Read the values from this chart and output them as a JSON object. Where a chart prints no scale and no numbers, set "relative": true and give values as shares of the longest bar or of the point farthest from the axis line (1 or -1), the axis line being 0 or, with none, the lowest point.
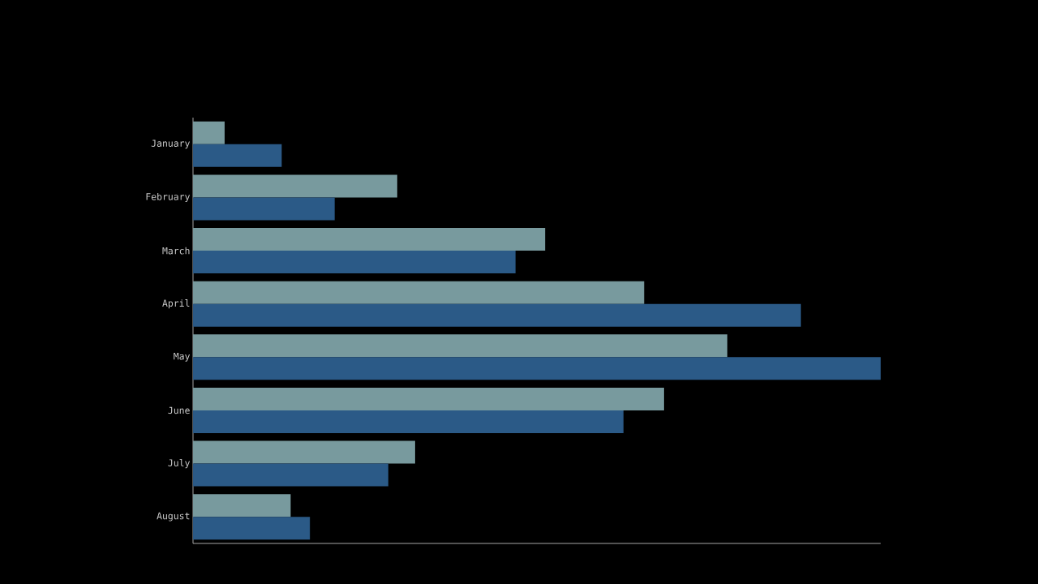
{
  "chart_data": {
    "type": "bar",
    "orientation": "horizontal",
    "relative": true,
    "categories": [
      "January",
      "February",
      "March",
      "April",
      "May",
      "June",
      "July",
      "August"
    ],
    "series": [
      {
        "color": "#789a9e",
        "values": [
          0.046,
          0.297,
          0.512,
          0.656,
          0.777,
          0.685,
          0.323,
          0.142
        ]
      },
      {
        "color": "#2b5a87",
        "values": [
          0.129,
          0.206,
          0.469,
          0.884,
          1.0,
          0.626,
          0.284,
          0.17
        ]
      }
    ]
  }
}
